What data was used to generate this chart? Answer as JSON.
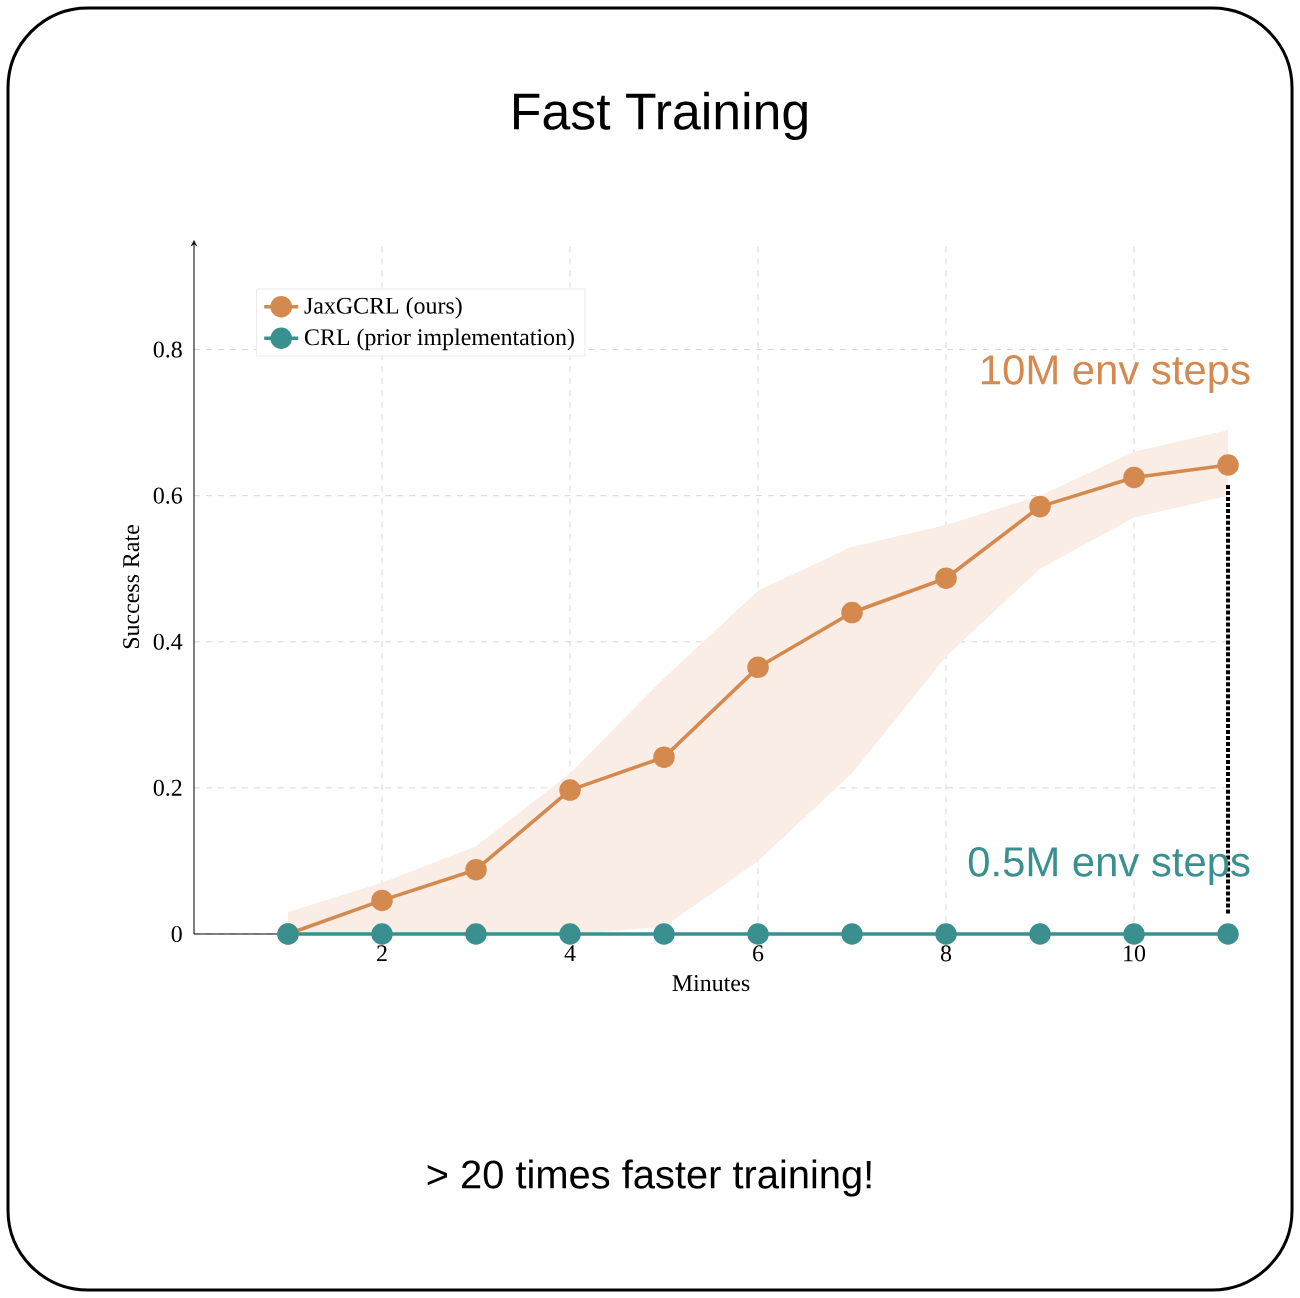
{
  "chart_data": {
    "type": "line",
    "title": "Fast Training",
    "xlabel": "Minutes",
    "ylabel": "Success Rate",
    "x": [
      1,
      2,
      3,
      4,
      5,
      6,
      7,
      8,
      9,
      10,
      11
    ],
    "series": [
      {
        "name": "JaxGCRL (ours)",
        "color": "#d4894f",
        "values": [
          0.0,
          0.046,
          0.088,
          0.197,
          0.242,
          0.365,
          0.44,
          0.487,
          0.585,
          0.625,
          0.642
        ],
        "lower": [
          0.0,
          0.0,
          0.0,
          0.0,
          0.01,
          0.1,
          0.22,
          0.38,
          0.5,
          0.57,
          0.6
        ],
        "upper": [
          0.03,
          0.07,
          0.12,
          0.22,
          0.35,
          0.47,
          0.53,
          0.56,
          0.6,
          0.66,
          0.69
        ]
      },
      {
        "name": "CRL (prior implementation)",
        "color": "#3a8f8f",
        "values": [
          0,
          0,
          0,
          0,
          0,
          0,
          0,
          0,
          0,
          0,
          0
        ]
      }
    ],
    "annotations": [
      "10M env steps",
      "0.5M env steps",
      "> 20 times faster training!"
    ],
    "xlim": [
      0,
      11
    ],
    "ylim": [
      0,
      0.95
    ],
    "xticks": [
      2,
      4,
      6,
      8,
      10
    ],
    "yticks": [
      0,
      0.2,
      0.4,
      0.6,
      0.8
    ],
    "grid": true,
    "legend": "top left",
    "marker": "circle",
    "line_style": "solid"
  }
}
